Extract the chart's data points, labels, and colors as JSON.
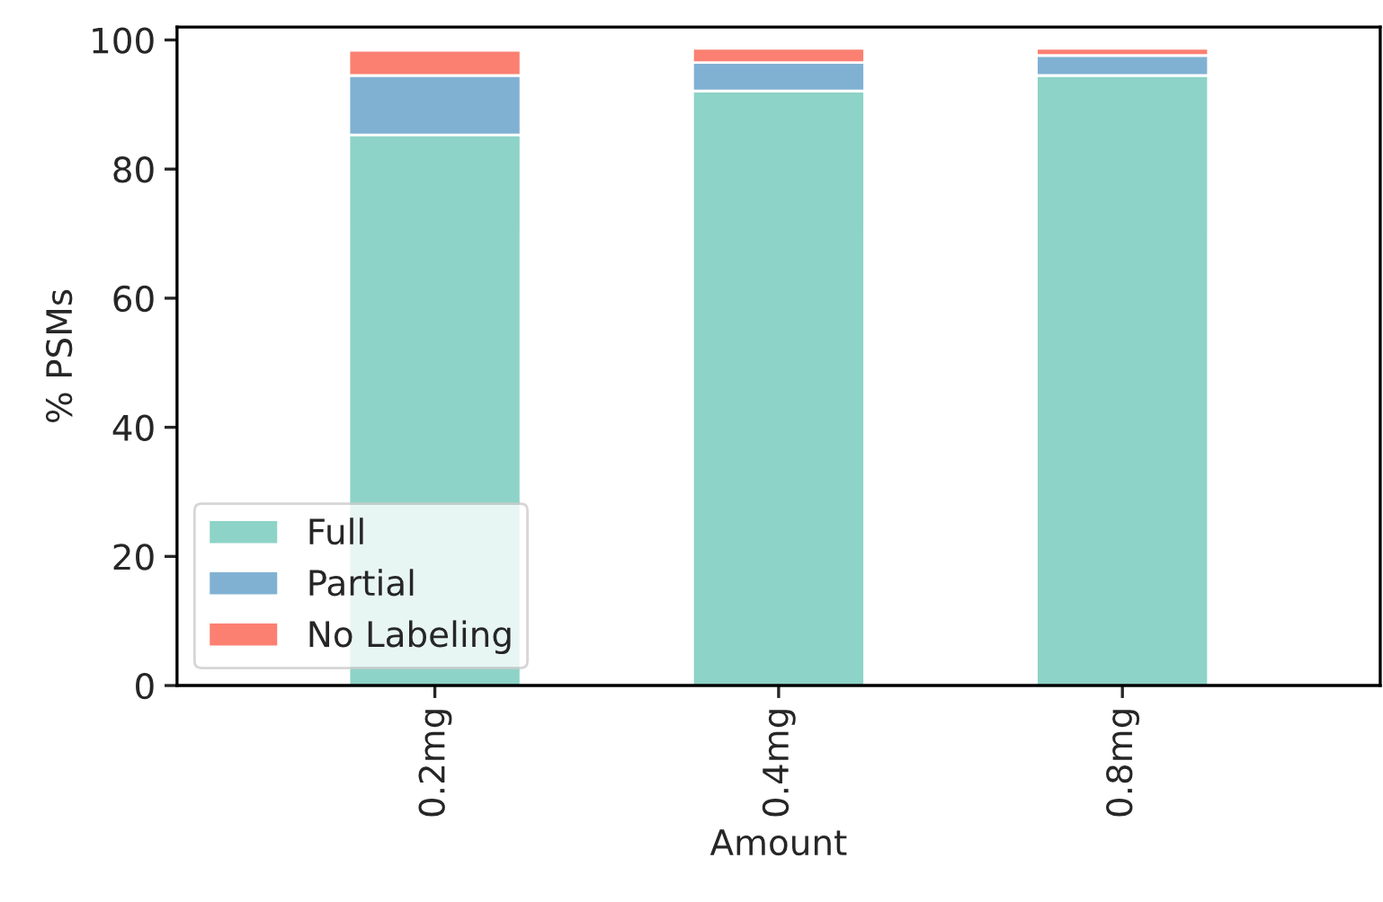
{
  "chart_data": {
    "type": "bar",
    "stacked": true,
    "xlabel": "Amount",
    "ylabel": "% PSMs",
    "categories": [
      "0.2mg",
      "0.4mg",
      "0.8mg"
    ],
    "series": [
      {
        "name": "Full",
        "color": "#8dd3c7",
        "values": [
          85.3,
          92.1,
          94.5
        ]
      },
      {
        "name": "Partial",
        "color": "#80b1d3",
        "values": [
          9.2,
          4.4,
          3.1
        ]
      },
      {
        "name": "No Labeling",
        "color": "#fb8072",
        "values": [
          3.9,
          2.2,
          1.1
        ]
      }
    ],
    "ylim": [
      0,
      102
    ],
    "yticks": [
      0,
      20,
      40,
      60,
      80,
      100
    ],
    "grid": false,
    "legend": "bottom left"
  }
}
